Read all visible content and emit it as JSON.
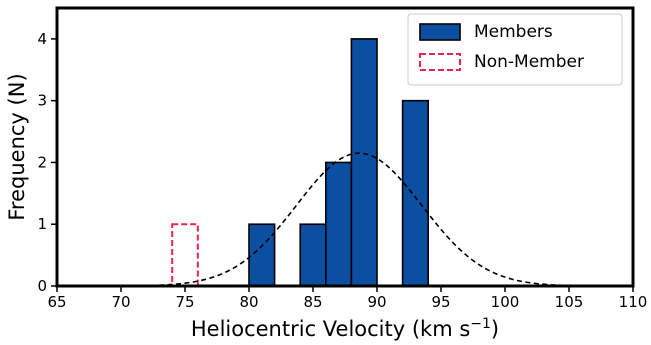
{
  "chart_data": {
    "type": "histogram",
    "xlabel": "Heliocentric Velocity (km s",
    "xlabel_superscript": "−1",
    "xlabel_suffix": ")",
    "ylabel": "Frequency (N)",
    "xlim": [
      65,
      110
    ],
    "ylim": [
      0,
      4.5
    ],
    "xticks": [
      65,
      70,
      75,
      80,
      85,
      90,
      95,
      100,
      105,
      110
    ],
    "yticks": [
      0,
      1,
      2,
      3,
      4
    ],
    "grid": false,
    "legend_position": "top-right",
    "series": [
      {
        "name": "Members",
        "style": "filled",
        "color": "#0c4ea0",
        "edgecolor": "#000000",
        "bins": [
          {
            "x0": 80,
            "x1": 82,
            "count": 1
          },
          {
            "x0": 84,
            "x1": 86,
            "count": 1
          },
          {
            "x0": 86,
            "x1": 88,
            "count": 2
          },
          {
            "x0": 88,
            "x1": 90,
            "count": 4
          },
          {
            "x0": 92,
            "x1": 94,
            "count": 3
          }
        ]
      },
      {
        "name": "Non-Member",
        "style": "dashed-outline",
        "color": "#e8254a",
        "bins": [
          {
            "x0": 74,
            "x1": 76,
            "count": 1
          }
        ]
      }
    ],
    "fit_curve": {
      "type": "gaussian",
      "mean": 88.6,
      "sigma": 4.9,
      "peak": 2.15,
      "style": "dashed",
      "color": "#000000"
    }
  }
}
